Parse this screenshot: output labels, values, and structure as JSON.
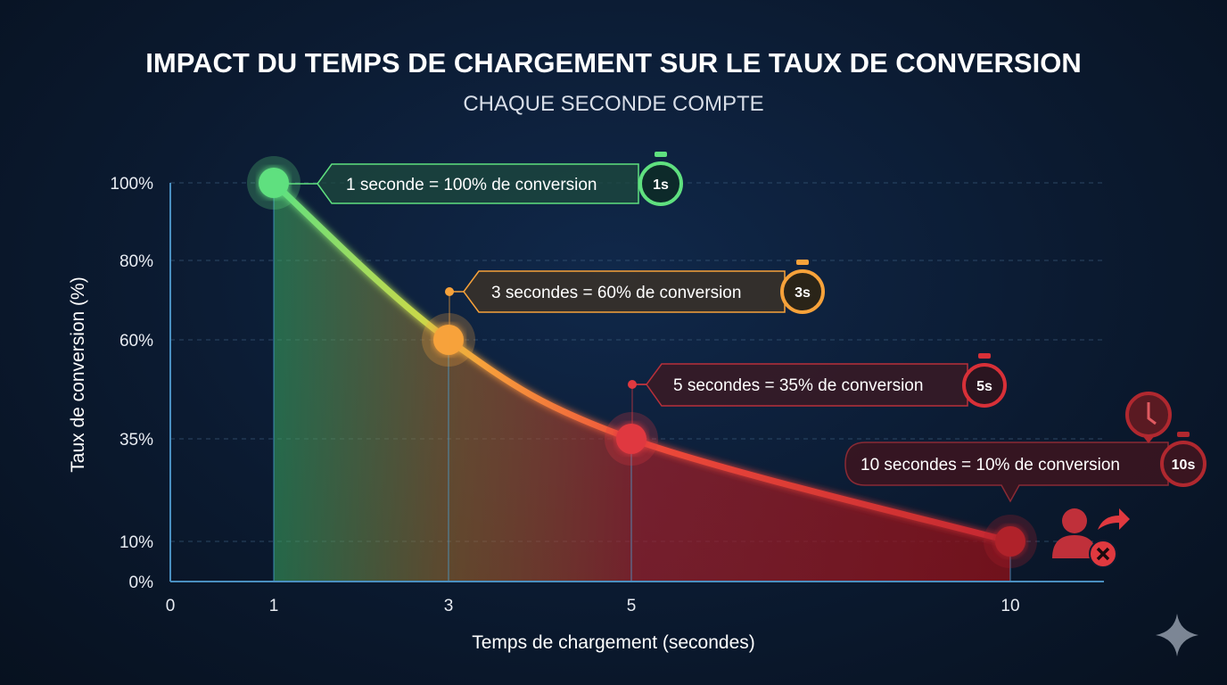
{
  "chart_data": {
    "type": "line",
    "title": "IMPACT DU TEMPS DE CHARGEMENT SUR LE TAUX DE CONVERSION",
    "subtitle": "CHAQUE SECONDE COMPTE",
    "xlabel": "Temps de chargement (secondes)",
    "ylabel": "Taux de conversion (%)",
    "x_ticks": [
      "0",
      "1",
      "3",
      "5",
      "10"
    ],
    "y_ticks": [
      "0%",
      "10%",
      "35%",
      "60%",
      "80%",
      "100%"
    ],
    "x_tick_values": [
      0,
      1,
      3,
      5,
      10
    ],
    "y_tick_values": [
      0,
      10,
      35,
      60,
      80,
      100
    ],
    "grid": "horizontal dashed",
    "x": [
      1,
      3,
      5,
      10
    ],
    "y": [
      100,
      60,
      35,
      10
    ],
    "colors": [
      "#5fe07f",
      "#f7a23a",
      "#e0393f",
      "#b0202a"
    ],
    "annotations": [
      {
        "text": "1 seconde = 100% de conversion",
        "badge": "1s"
      },
      {
        "text": "3 secondes = 60% de conversion",
        "badge": "3s"
      },
      {
        "text": "5 secondes = 35% de conversion",
        "badge": "5s"
      },
      {
        "text": "10 secondes = 10% de conversion",
        "badge": "10s"
      }
    ]
  },
  "icons": [
    "stopwatch-icon",
    "clock-pin-icon",
    "user-leaving-icon",
    "sparkle-icon"
  ]
}
